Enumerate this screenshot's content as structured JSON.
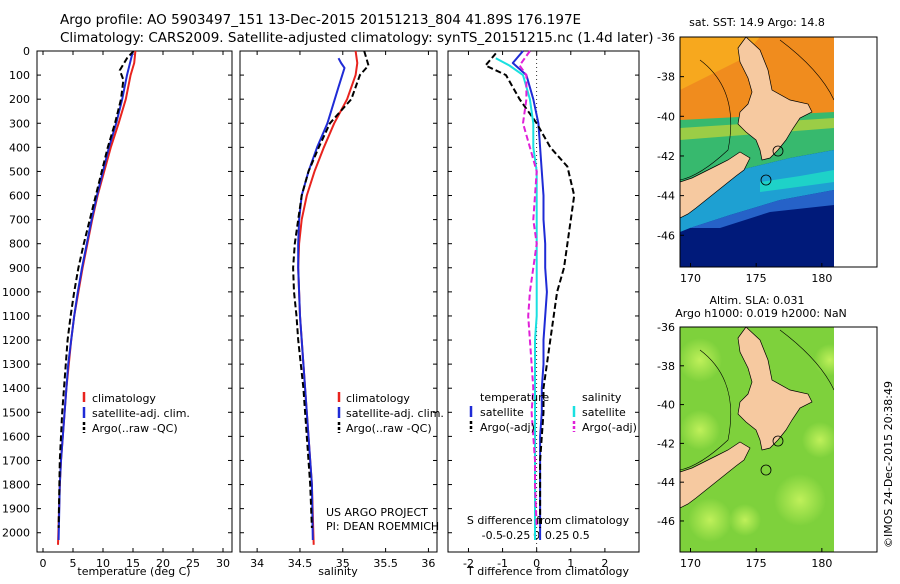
{
  "header": {
    "line1": "Argo profile: AO 5903497_151 13-Dec-2015 20151213_804 41.89S 176.197E",
    "line2": "Climatology: CARS2009. Satellite-adjusted climatology: synTS_20151215.nc (1.4d later)"
  },
  "credit": "US ARGO PROJECT",
  "pi": "PI: DEAN ROEMMICH",
  "watermark": "©IMOS 24-Dec-2015 20:38:49",
  "colors": {
    "climatology": "#e8231e",
    "satellite": "#1f2bd6",
    "argo": "#000000",
    "cyan": "#19e0e0",
    "magenta": "#e020d8",
    "land": "#f6c9a0",
    "ocean_deep": "#001a7a"
  },
  "chart_data": [
    {
      "type": "line",
      "xlabel": "temperature (deg C)",
      "ylabel": "",
      "xlim": [
        -1,
        31.5
      ],
      "ylim": [
        2080,
        0
      ],
      "xticks": [
        0,
        5,
        10,
        15,
        20,
        25,
        30
      ],
      "yticks": [
        0,
        100,
        200,
        300,
        400,
        500,
        600,
        700,
        800,
        900,
        1000,
        1100,
        1200,
        1300,
        1400,
        1500,
        1600,
        1700,
        1800,
        1900,
        2000
      ],
      "legend": [
        "climatology",
        "satellite-adj. clim.",
        "Argo(..raw -QC)"
      ],
      "series": [
        {
          "name": "climatology",
          "color": "#e8231e",
          "dash": false,
          "x": [
            15.4,
            15.2,
            14.6,
            13.8,
            12.6,
            11.3,
            10.2,
            9.1,
            8.2,
            7.4,
            6.6,
            5.9,
            5.2,
            4.7,
            4.3,
            3.9,
            3.6,
            3.3,
            3.0,
            2.8,
            2.5
          ],
          "y": [
            0,
            50,
            100,
            200,
            300,
            400,
            500,
            600,
            700,
            800,
            900,
            1000,
            1100,
            1200,
            1300,
            1400,
            1500,
            1600,
            1700,
            1800,
            2050
          ]
        },
        {
          "name": "satellite-adj. clim.",
          "color": "#1f2bd6",
          "dash": false,
          "x": [
            15.0,
            14.5,
            14.0,
            13.2,
            12.2,
            11.0,
            10.0,
            9.0,
            8.1,
            7.3,
            6.5,
            5.8,
            5.2,
            4.7,
            4.2,
            3.9,
            3.6,
            3.3,
            3.0,
            2.8,
            2.6
          ],
          "y": [
            0,
            50,
            100,
            200,
            300,
            400,
            500,
            600,
            700,
            800,
            900,
            1000,
            1100,
            1200,
            1300,
            1400,
            1500,
            1600,
            1700,
            1800,
            2030
          ]
        },
        {
          "name": "Argo(..raw -QC)",
          "color": "#000000",
          "dash": true,
          "x": [
            15.1,
            14.0,
            12.8,
            13.4,
            13.0,
            12.0,
            10.8,
            9.8,
            8.8,
            7.8,
            6.8,
            5.9,
            5.2,
            4.6,
            4.1,
            3.8,
            3.5,
            3.2,
            3.0,
            2.8,
            2.6
          ],
          "y": [
            0,
            30,
            80,
            120,
            200,
            300,
            400,
            500,
            600,
            700,
            800,
            900,
            1000,
            1100,
            1200,
            1300,
            1400,
            1500,
            1600,
            1700,
            1980
          ]
        }
      ]
    },
    {
      "type": "line",
      "xlabel": "salinity",
      "ylabel": "",
      "xlim": [
        33.8,
        36.1
      ],
      "ylim": [
        2080,
        0
      ],
      "xticks": [
        34,
        34.5,
        35,
        35.5,
        36
      ],
      "legend": [
        "climatology",
        "satellite-adj. clim.",
        "Argo(..raw -QC)"
      ],
      "series": [
        {
          "name": "climatology",
          "color": "#e8231e",
          "dash": false,
          "x": [
            35.15,
            35.17,
            35.15,
            35.05,
            34.9,
            34.78,
            34.67,
            34.58,
            34.52,
            34.49,
            34.48,
            34.49,
            34.5,
            34.52,
            34.54,
            34.56,
            34.58,
            34.6,
            34.62,
            34.64,
            34.66
          ],
          "y": [
            0,
            50,
            100,
            200,
            300,
            400,
            500,
            600,
            700,
            800,
            900,
            1000,
            1100,
            1200,
            1300,
            1400,
            1500,
            1600,
            1700,
            1800,
            2050
          ]
        },
        {
          "name": "satellite-adj. clim.",
          "color": "#1f2bd6",
          "dash": false,
          "x": [
            34.95,
            34.98,
            35.02,
            34.95,
            34.82,
            34.7,
            34.6,
            34.52,
            34.49,
            34.48,
            34.48,
            34.49,
            34.5,
            34.52,
            34.54,
            34.56,
            34.58,
            34.6,
            34.62,
            34.64,
            34.65
          ],
          "y": [
            30,
            50,
            70,
            150,
            300,
            400,
            500,
            600,
            700,
            800,
            900,
            1000,
            1100,
            1200,
            1300,
            1400,
            1500,
            1600,
            1700,
            1800,
            2030
          ]
        },
        {
          "name": "Argo(..raw -QC)",
          "color": "#000000",
          "dash": true,
          "x": [
            35.25,
            35.3,
            35.2,
            35.1,
            34.85,
            34.72,
            34.6,
            34.52,
            34.48,
            34.44,
            34.42,
            34.43,
            34.46,
            34.48,
            34.51,
            34.54,
            34.56,
            34.58,
            34.6,
            34.62,
            34.64
          ],
          "y": [
            0,
            60,
            100,
            200,
            300,
            400,
            500,
            600,
            700,
            800,
            900,
            1000,
            1100,
            1200,
            1300,
            1400,
            1500,
            1600,
            1700,
            1800,
            1980
          ]
        }
      ]
    },
    {
      "type": "line",
      "xlabel": "T difference from climatology",
      "xlabel_top": "S difference from climatology",
      "xlim": [
        -2.6,
        3.0
      ],
      "ylim": [
        2080,
        0
      ],
      "xticks": [
        -2,
        -1,
        0,
        1,
        2
      ],
      "xticks_s": [
        "-0.5",
        "-0.25",
        "0",
        "0.25",
        "0.5"
      ],
      "xticks_s_pos": [
        -1.3,
        -0.6,
        0,
        0.6,
        1.3
      ],
      "legend": [
        {
          "header": "temperature",
          "items": [
            "satellite",
            "Argo(-adj)"
          ]
        },
        {
          "header": "salinity",
          "items": [
            "satellite",
            "Argo(-adj)"
          ]
        }
      ],
      "series": [
        {
          "name": "satellite",
          "group": "temperature",
          "color": "#1f2bd6",
          "dash": false,
          "x": [
            -0.4,
            -0.7,
            -0.3,
            -0.1,
            0.05,
            0.1,
            0.15,
            0.2,
            0.2,
            0.25,
            0.25,
            0.3,
            0.25,
            0.2,
            0.2,
            0.15,
            0.15,
            0.1,
            0.1,
            0.1,
            0.1
          ],
          "y": [
            0,
            50,
            100,
            200,
            300,
            400,
            500,
            600,
            700,
            800,
            900,
            1000,
            1100,
            1200,
            1300,
            1400,
            1500,
            1600,
            1700,
            1800,
            2030
          ]
        },
        {
          "name": "Argo(-adj)",
          "group": "temperature",
          "color": "#000000",
          "dash": true,
          "x": [
            -1.2,
            -1.5,
            -0.9,
            -0.5,
            0.0,
            0.4,
            0.9,
            1.1,
            1.0,
            0.9,
            0.8,
            0.6,
            0.5,
            0.4,
            0.3,
            0.2,
            0.2,
            0.15,
            0.1,
            0.1,
            0.1
          ],
          "y": [
            10,
            60,
            100,
            200,
            300,
            400,
            480,
            600,
            700,
            800,
            900,
            1000,
            1100,
            1200,
            1300,
            1400,
            1500,
            1600,
            1700,
            1800,
            1980
          ]
        },
        {
          "name": "satellite",
          "group": "salinity",
          "color": "#19e0e0",
          "dash": false,
          "x": [
            -1.2,
            -0.8,
            -0.4,
            -0.2,
            -0.1,
            -0.1,
            0.0,
            0.0,
            0.0,
            0.0,
            0.0,
            0.0,
            0.0,
            -0.05,
            -0.05,
            -0.05,
            -0.05,
            -0.05,
            -0.05,
            -0.05,
            -0.05
          ],
          "y": [
            30,
            60,
            100,
            200,
            300,
            400,
            500,
            600,
            700,
            800,
            900,
            1000,
            1100,
            1200,
            1300,
            1400,
            1500,
            1600,
            1700,
            1800,
            2030
          ]
        },
        {
          "name": "Argo(-adj)",
          "group": "salinity",
          "color": "#e020d8",
          "dash": true,
          "x": [
            -0.2,
            -0.5,
            -0.3,
            -0.3,
            -0.4,
            -0.2,
            0.0,
            -0.05,
            -0.1,
            0.0,
            -0.1,
            -0.2,
            -0.25,
            -0.2,
            -0.15,
            -0.1,
            -0.15,
            -0.1,
            -0.05,
            -0.05,
            0.0
          ],
          "y": [
            0,
            60,
            100,
            200,
            300,
            400,
            500,
            600,
            700,
            800,
            900,
            1000,
            1100,
            1200,
            1300,
            1400,
            1500,
            1600,
            1700,
            1800,
            1980
          ]
        }
      ]
    }
  ],
  "maps": [
    {
      "title": "sat. SST: 14.9 Argo: 14.8",
      "xticks": [
        "170",
        "175",
        "180"
      ],
      "yticks": [
        "-36",
        "-38",
        "-40",
        "-42",
        "-44",
        "-46"
      ]
    },
    {
      "title_line1": "Altim. SLA: 0.031",
      "title_line2": "Argo h1000: 0.019 h2000: NaN",
      "xticks": [
        "170",
        "175",
        "180"
      ],
      "yticks": [
        "-36",
        "-38",
        "-40",
        "-42",
        "-44",
        "-46"
      ]
    }
  ]
}
